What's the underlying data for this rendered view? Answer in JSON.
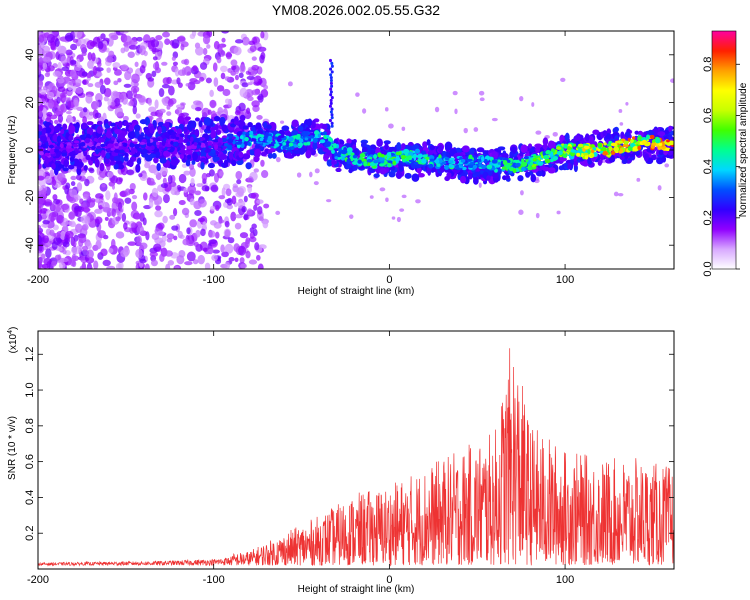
{
  "chart_data": [
    {
      "type": "heatmap",
      "title": "YM08.2026.002.05.55.G32",
      "xlabel": "Height of straight line (km)",
      "ylabel": "Frequency (Hz)",
      "xlim": [
        -200,
        162
      ],
      "ylim": [
        -50,
        50
      ],
      "xticks": [
        -200,
        -100,
        0,
        100
      ],
      "xtick_labels": [
        "-200",
        "-100",
        "0",
        "100"
      ],
      "yticks": [
        -40,
        -20,
        0,
        20,
        40
      ],
      "ytick_labels": [
        "-40",
        "-20",
        "0",
        "20",
        "40"
      ],
      "colorbar": {
        "label": "Normalized spectral amplitude",
        "range": [
          0,
          0.93
        ],
        "ticks": [
          0.0,
          0.2,
          0.4,
          0.6,
          0.8
        ],
        "tick_labels": [
          "0.0",
          "0.2",
          "0.4",
          "0.6",
          "0.8"
        ],
        "colors": [
          "#ffffff",
          "#d8a8ff",
          "#9000ff",
          "#3000ff",
          "#0050ff",
          "#00d8ff",
          "#00ff90",
          "#40ff00",
          "#c8ff00",
          "#ffff00",
          "#ffa000",
          "#ff2000",
          "#ff00a0"
        ]
      },
      "ridge": {
        "x": [
          -200,
          -150,
          -100,
          -80,
          -60,
          -40,
          -30,
          0,
          30,
          60,
          90,
          120,
          162
        ],
        "freq": [
          1,
          2,
          3,
          4,
          4,
          6,
          -2,
          -4,
          -4,
          -7,
          -3,
          1,
          3
        ],
        "amplitude": [
          0.25,
          0.25,
          0.28,
          0.45,
          0.45,
          0.45,
          0.5,
          0.55,
          0.5,
          0.5,
          0.6,
          0.8,
          0.85
        ]
      },
      "spike": {
        "x": -33,
        "freq_range": [
          10,
          38
        ]
      }
    },
    {
      "type": "line",
      "xlabel": "Height of straight line (km)",
      "ylabel": "SNR (10 * v/v)",
      "scale_label": "(x10",
      "scale_exponent": "4",
      "xlim": [
        -200,
        162
      ],
      "ylim": [
        0,
        1.33
      ],
      "xticks": [
        -200,
        -100,
        0,
        100
      ],
      "xtick_labels": [
        "-200",
        "-100",
        "0",
        "100"
      ],
      "yticks": [
        0.2,
        0.4,
        0.6,
        0.8,
        1.0,
        1.2
      ],
      "ytick_labels": [
        "0.2",
        "0.4",
        "0.6",
        "0.8",
        "1.0",
        "1.2"
      ],
      "color": "#ee3333",
      "envelope": {
        "x": [
          -200,
          -130,
          -100,
          -80,
          -60,
          -40,
          -20,
          0,
          20,
          40,
          60,
          70,
          80,
          100,
          120,
          140,
          162
        ],
        "y": [
          0.03,
          0.04,
          0.05,
          0.08,
          0.18,
          0.28,
          0.4,
          0.45,
          0.55,
          0.65,
          0.75,
          1.3,
          0.8,
          0.65,
          0.6,
          0.6,
          0.55
        ]
      }
    }
  ]
}
